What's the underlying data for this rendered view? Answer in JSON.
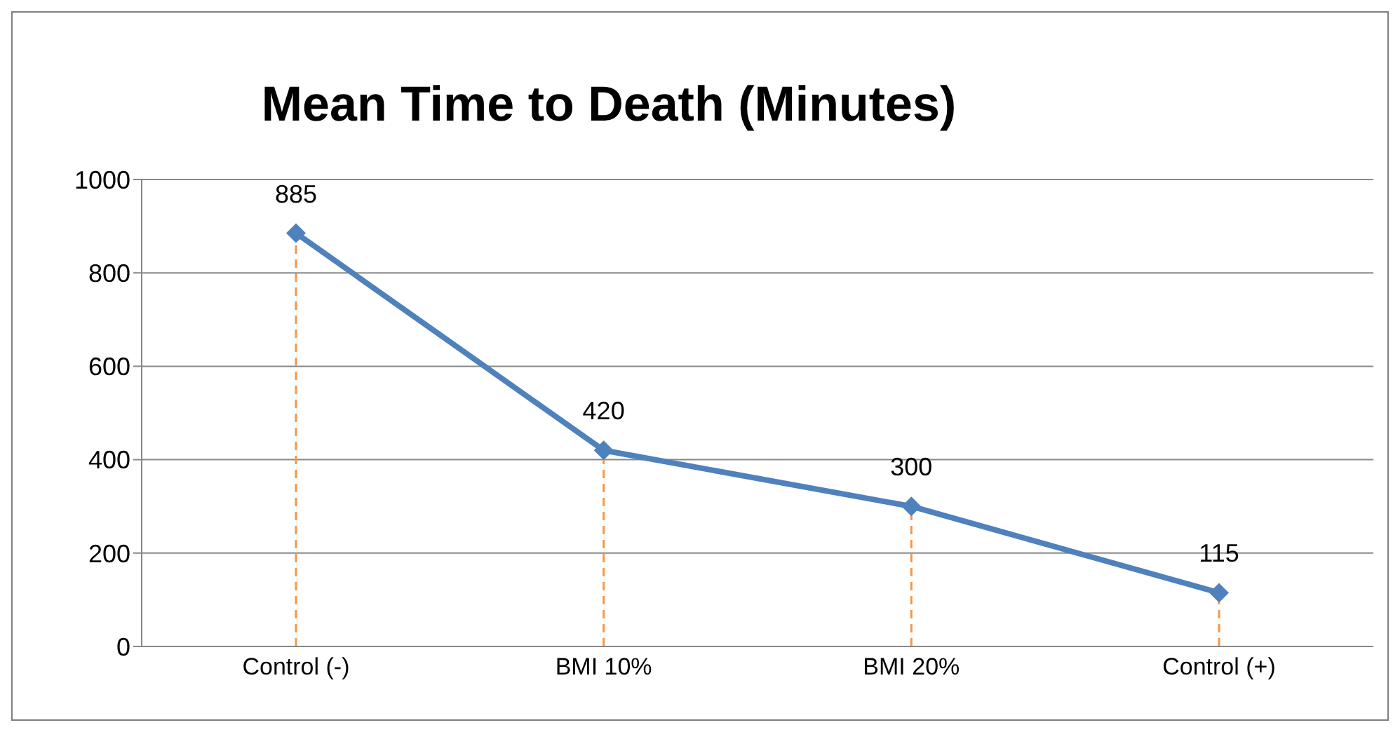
{
  "chart_data": {
    "type": "line",
    "title": "Mean Time to Death (Minutes)",
    "categories": [
      "Control (-)",
      "BMI 10%",
      "BMI 20%",
      "Control (+)"
    ],
    "series": [
      {
        "color": "#4f81bd",
        "values": [
          885,
          420,
          300,
          115
        ]
      }
    ],
    "ylim": [
      0,
      1000
    ],
    "yticks": [
      0,
      200,
      400,
      600,
      800,
      1000
    ],
    "grid": "y",
    "legend": false,
    "marker": "diamond",
    "line_style": "solid",
    "data_labels": true,
    "ref_lines": [
      {
        "axis": "x",
        "value": "Control (-)",
        "color": "#f79646",
        "line_style": "dashed"
      },
      {
        "axis": "x",
        "value": "BMI 10%",
        "color": "#f79646",
        "line_style": "dashed"
      },
      {
        "axis": "x",
        "value": "BMI 20%",
        "color": "#f79646",
        "line_style": "dashed"
      },
      {
        "axis": "x",
        "value": "Control (+)",
        "color": "#f79646",
        "line_style": "dashed"
      }
    ]
  }
}
